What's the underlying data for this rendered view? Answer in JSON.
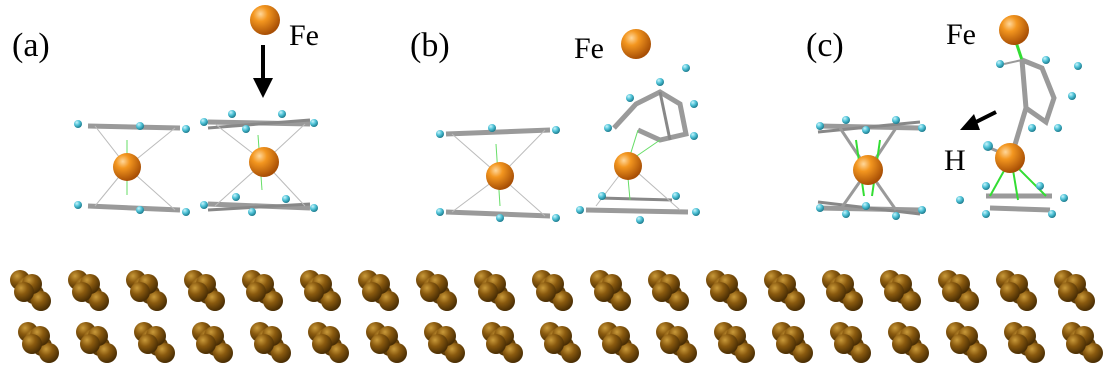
{
  "panels": [
    {
      "label": "(a)",
      "fe_label": "Fe"
    },
    {
      "label": "(b)",
      "fe_label": "Fe"
    },
    {
      "label": "(c)",
      "fe_label": "Fe",
      "h_label": "H"
    }
  ],
  "colors": {
    "fe_atom": "#e07b12",
    "carbon_bond": "#9a9a9a",
    "hydrogen_atom": "#4fc3d8",
    "fe_c_bond": "#33dd33",
    "surface_atom": "#8a5a0f",
    "arrow": "#000000"
  },
  "icons": [
    "fe-atom-icon",
    "down-arrow-icon",
    "diagonal-arrow-icon"
  ]
}
